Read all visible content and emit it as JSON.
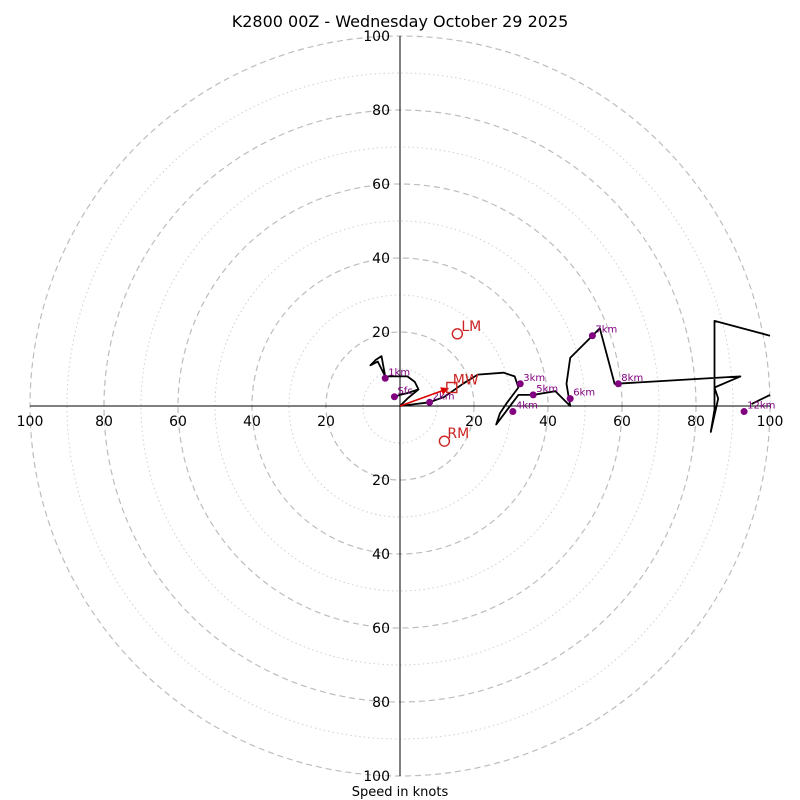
{
  "chart_data": {
    "type": "hodograph",
    "title": "K2800 00Z - Wednesday October 29 2025",
    "xlabel": "Speed in knots",
    "units": "knots",
    "rings_major": [
      20,
      40,
      60,
      80,
      100
    ],
    "rings_minor": [
      10,
      30,
      50,
      70,
      90
    ],
    "tick_labels": [
      "20",
      "40",
      "60",
      "80",
      "100"
    ],
    "trace": [
      [
        -1.5,
        2.5
      ],
      [
        0,
        3
      ],
      [
        2,
        3.5
      ],
      [
        5,
        4.5
      ],
      [
        4,
        6.5
      ],
      [
        2,
        8
      ],
      [
        -2,
        8
      ],
      [
        -4,
        8
      ],
      [
        -5,
        13.5
      ],
      [
        -6.5,
        12.5
      ],
      [
        -8,
        11
      ],
      [
        -6,
        12
      ],
      [
        -4,
        8
      ],
      [
        -2,
        8
      ],
      [
        2,
        8
      ],
      [
        4,
        6.5
      ],
      [
        5,
        4.5
      ],
      [
        2,
        2
      ],
      [
        0,
        0
      ],
      [
        4,
        0.5
      ],
      [
        8,
        1
      ],
      [
        12,
        2.5
      ],
      [
        17,
        6
      ],
      [
        21,
        8.5
      ],
      [
        28,
        9
      ],
      [
        31,
        8
      ],
      [
        32,
        5
      ],
      [
        29,
        1
      ],
      [
        27,
        -2
      ],
      [
        26,
        -5
      ],
      [
        29,
        -1
      ],
      [
        32,
        3
      ],
      [
        36,
        3
      ],
      [
        42,
        4
      ],
      [
        46,
        0
      ],
      [
        45,
        6
      ],
      [
        46,
        13
      ],
      [
        52,
        19
      ],
      [
        54,
        21
      ],
      [
        58,
        6
      ],
      [
        92,
        8
      ],
      [
        85,
        5
      ],
      [
        86,
        2
      ],
      [
        84,
        -7
      ],
      [
        85,
        -1
      ],
      [
        85,
        23
      ],
      [
        100,
        19
      ]
    ],
    "trace_extra": [
      [
        95,
        0.5
      ],
      [
        100,
        3
      ]
    ],
    "height_points": [
      {
        "label": "Sfc",
        "u": -1.5,
        "v": 2.5
      },
      {
        "label": "1km",
        "u": -4,
        "v": 7.5
      },
      {
        "label": "2km",
        "u": 8,
        "v": 1
      },
      {
        "label": "3km",
        "u": 32.5,
        "v": 6
      },
      {
        "label": "4km",
        "u": 30.5,
        "v": -1.5
      },
      {
        "label": "5km",
        "u": 36,
        "v": 3
      },
      {
        "label": "6km",
        "u": 46,
        "v": 2
      },
      {
        "label": "7km",
        "u": 52,
        "v": 19
      },
      {
        "label": "8km",
        "u": 59,
        "v": 6
      },
      {
        "label": "12km",
        "u": 93,
        "v": -1.5
      }
    ],
    "storm_motion": {
      "LM": {
        "label": "LM",
        "u": 15.5,
        "v": 19.5
      },
      "MW": {
        "label": "MW",
        "u": 14,
        "v": 5
      },
      "RM": {
        "label": "RM",
        "u": 12,
        "v": -9.5
      }
    },
    "colors": {
      "trace": "#000000",
      "height_points": "#800080",
      "storm_motion": "#cc2222",
      "mean_wind_vector": "#dd0000",
      "rings": "#bdbdbd"
    }
  }
}
